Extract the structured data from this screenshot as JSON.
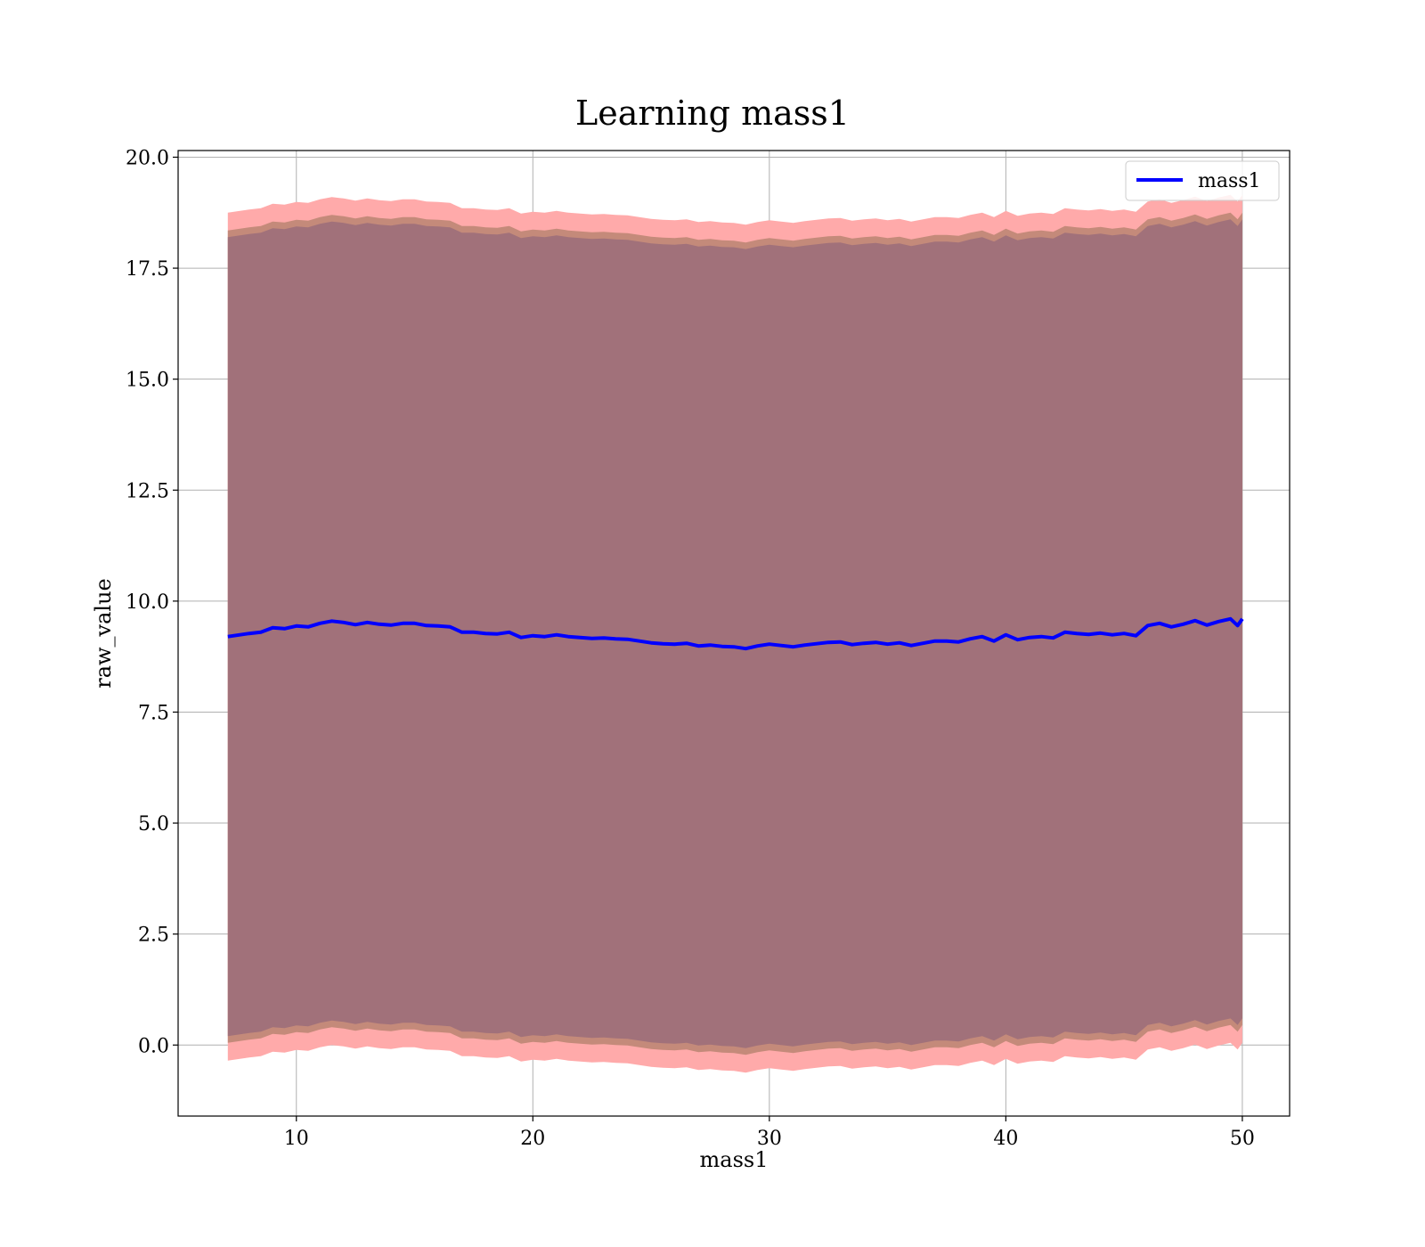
{
  "chart_data": {
    "type": "line",
    "title": "Learning mass1",
    "xlabel": "mass1",
    "ylabel": "raw_value",
    "xlim": [
      5.0,
      52.0
    ],
    "ylim": [
      -1.6,
      20.15
    ],
    "xticks": [
      10,
      20,
      30,
      40,
      50
    ],
    "yticks": [
      0.0,
      2.5,
      5.0,
      7.5,
      10.0,
      12.5,
      15.0,
      17.5,
      20.0
    ],
    "ytick_labels": [
      "0.0",
      "2.5",
      "5.0",
      "7.5",
      "10.0",
      "12.5",
      "15.0",
      "17.5",
      "20.0"
    ],
    "xtick_labels": [
      "10",
      "20",
      "30",
      "40",
      "50"
    ],
    "grid": true,
    "legend": {
      "placement": "top-right",
      "entries": [
        "mass1"
      ]
    },
    "series": [
      {
        "name": "mass1",
        "color": "#0000ff",
        "x": [
          7.1,
          8.0,
          8.5,
          9.0,
          9.5,
          10.0,
          10.5,
          11.0,
          11.5,
          12.0,
          12.5,
          13.0,
          13.5,
          14.0,
          14.5,
          15.0,
          15.5,
          16.0,
          16.5,
          17.0,
          17.5,
          18.0,
          18.5,
          19.0,
          19.5,
          20.0,
          20.5,
          21.0,
          21.5,
          22.0,
          22.5,
          23.0,
          23.5,
          24.0,
          24.5,
          25.0,
          25.5,
          26.0,
          26.5,
          27.0,
          27.5,
          28.0,
          28.5,
          29.0,
          29.5,
          30.0,
          30.5,
          31.0,
          31.5,
          32.0,
          32.5,
          33.0,
          33.5,
          34.0,
          34.5,
          35.0,
          35.5,
          36.0,
          36.5,
          37.0,
          37.5,
          38.0,
          38.5,
          39.0,
          39.5,
          40.0,
          40.5,
          41.0,
          41.5,
          42.0,
          42.5,
          43.0,
          43.5,
          44.0,
          44.5,
          45.0,
          45.5,
          46.0,
          46.5,
          47.0,
          47.5,
          48.0,
          48.5,
          49.0,
          49.5,
          49.8,
          50.0
        ],
        "y": [
          9.2,
          9.27,
          9.3,
          9.4,
          9.38,
          9.44,
          9.42,
          9.5,
          9.55,
          9.52,
          9.47,
          9.52,
          9.48,
          9.46,
          9.5,
          9.5,
          9.45,
          9.44,
          9.42,
          9.3,
          9.3,
          9.27,
          9.26,
          9.3,
          9.18,
          9.22,
          9.2,
          9.24,
          9.2,
          9.18,
          9.16,
          9.17,
          9.15,
          9.14,
          9.1,
          9.06,
          9.04,
          9.03,
          9.05,
          8.99,
          9.01,
          8.98,
          8.97,
          8.93,
          8.99,
          9.03,
          9.0,
          8.97,
          9.01,
          9.04,
          9.07,
          9.08,
          9.02,
          9.05,
          9.07,
          9.03,
          9.06,
          9.0,
          9.05,
          9.1,
          9.1,
          9.08,
          9.15,
          9.2,
          9.1,
          9.24,
          9.13,
          9.18,
          9.2,
          9.17,
          9.3,
          9.27,
          9.25,
          9.28,
          9.24,
          9.27,
          9.22,
          9.45,
          9.5,
          9.42,
          9.48,
          9.56,
          9.46,
          9.54,
          9.6,
          9.45,
          9.6
        ]
      }
    ],
    "bands": [
      {
        "fill": "#ffaaaa",
        "upper_offset": 9.55,
        "lower_offset": 9.55
      },
      {
        "fill": "#c48a7a",
        "upper_offset": 9.15,
        "lower_offset": 9.15
      },
      {
        "fill": "#a1717a",
        "upper_offset": 9.0,
        "lower_offset": 9.0
      }
    ]
  }
}
